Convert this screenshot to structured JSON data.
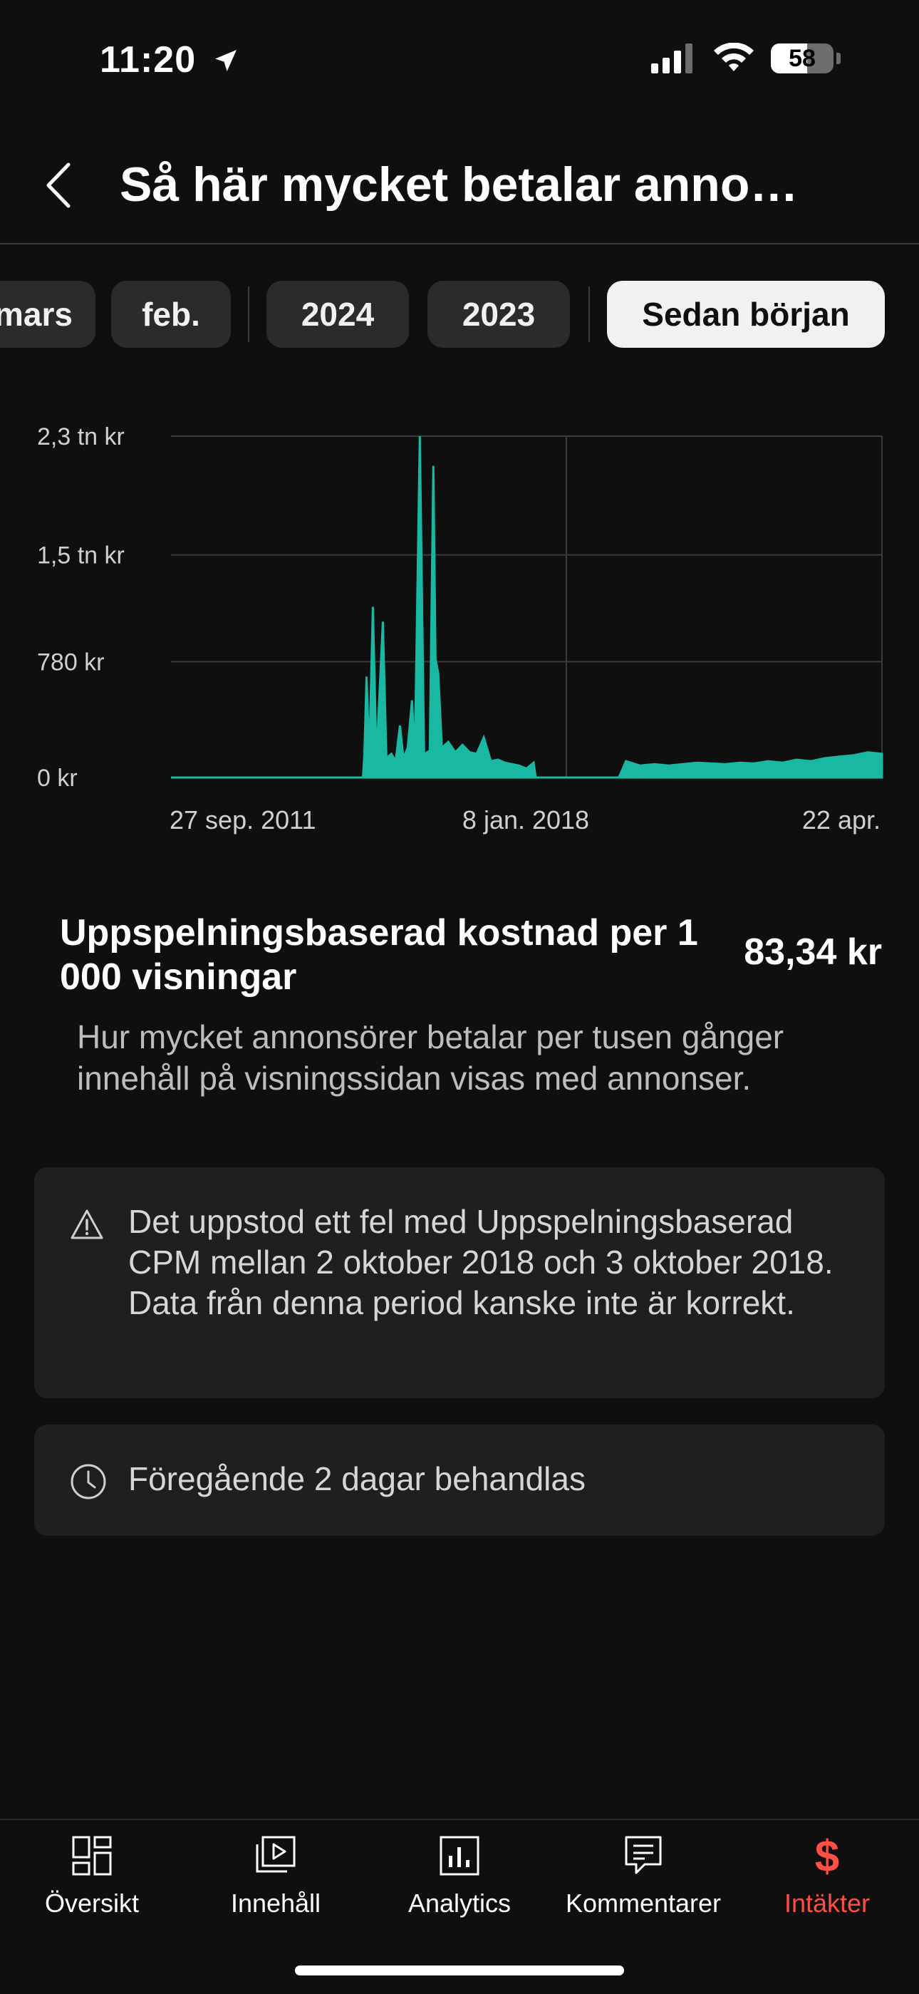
{
  "status_bar": {
    "time": "11:20",
    "battery": "58"
  },
  "header": {
    "title": "Så här mycket betalar anno…"
  },
  "chips": [
    "mars",
    "feb.",
    "2024",
    "2023",
    "Sedan början"
  ],
  "chart_data": {
    "type": "area",
    "title": "",
    "color": "#19b8a3",
    "y_ticks": [
      "2,3 tn kr",
      "1,5 tn kr",
      "780 kr",
      "0 kr"
    ],
    "y_tick_values": [
      2300,
      1500,
      780,
      0
    ],
    "ylim": [
      0,
      2300
    ],
    "x_ticks": [
      "27 sep. 2011",
      "8 jan. 2018",
      "22 apr."
    ],
    "series": [
      {
        "values": [
          [
            0.0,
            0
          ],
          [
            0.27,
            0
          ],
          [
            0.272,
            160
          ],
          [
            0.275,
            680
          ],
          [
            0.279,
            140
          ],
          [
            0.284,
            1150
          ],
          [
            0.289,
            120
          ],
          [
            0.298,
            1050
          ],
          [
            0.303,
            130
          ],
          [
            0.31,
            160
          ],
          [
            0.316,
            110
          ],
          [
            0.322,
            350
          ],
          [
            0.327,
            130
          ],
          [
            0.333,
            200
          ],
          [
            0.339,
            520
          ],
          [
            0.343,
            150
          ],
          [
            0.35,
            2300
          ],
          [
            0.356,
            150
          ],
          [
            0.36,
            170
          ],
          [
            0.364,
            180
          ],
          [
            0.369,
            2100
          ],
          [
            0.372,
            800
          ],
          [
            0.376,
            700
          ],
          [
            0.381,
            200
          ],
          [
            0.39,
            240
          ],
          [
            0.4,
            170
          ],
          [
            0.41,
            220
          ],
          [
            0.42,
            170
          ],
          [
            0.43,
            160
          ],
          [
            0.44,
            270
          ],
          [
            0.45,
            110
          ],
          [
            0.46,
            120
          ],
          [
            0.47,
            100
          ],
          [
            0.48,
            90
          ],
          [
            0.49,
            80
          ],
          [
            0.5,
            60
          ],
          [
            0.51,
            100
          ],
          [
            0.513,
            0
          ],
          [
            0.63,
            0
          ],
          [
            0.64,
            110
          ],
          [
            0.66,
            80
          ],
          [
            0.68,
            90
          ],
          [
            0.7,
            80
          ],
          [
            0.72,
            90
          ],
          [
            0.74,
            100
          ],
          [
            0.76,
            95
          ],
          [
            0.78,
            90
          ],
          [
            0.8,
            100
          ],
          [
            0.82,
            95
          ],
          [
            0.84,
            110
          ],
          [
            0.86,
            100
          ],
          [
            0.88,
            120
          ],
          [
            0.9,
            110
          ],
          [
            0.92,
            130
          ],
          [
            0.94,
            140
          ],
          [
            0.96,
            150
          ],
          [
            0.98,
            170
          ],
          [
            1.0,
            160
          ]
        ]
      }
    ],
    "grid": true
  },
  "metric": {
    "title": "Uppspelningsbaserad kostnad per 1 000 visningar",
    "value": "83,34 kr",
    "description": "Hur mycket annonsörer betalar per tusen gånger innehåll på visningssidan visas med annonser."
  },
  "cards": {
    "warning": "Det uppstod ett fel med Uppspelningsbaserad CPM mellan 2 oktober 2018 och 3 oktober 2018. Data från denna period kanske inte är korrekt.",
    "processing": "Föregående 2 dagar behandlas"
  },
  "tabs": [
    {
      "label": "Översikt",
      "icon": "dashboard-icon"
    },
    {
      "label": "Innehåll",
      "icon": "content-play-icon"
    },
    {
      "label": "Analytics",
      "icon": "bar-chart-icon"
    },
    {
      "label": "Kommentarer",
      "icon": "comment-icon"
    },
    {
      "label": "Intäkter",
      "icon": "dollar-icon",
      "active": true
    }
  ],
  "colors": {
    "accent": "#ff4e45",
    "chart": "#19b8a3",
    "background": "#0f0f0f"
  }
}
